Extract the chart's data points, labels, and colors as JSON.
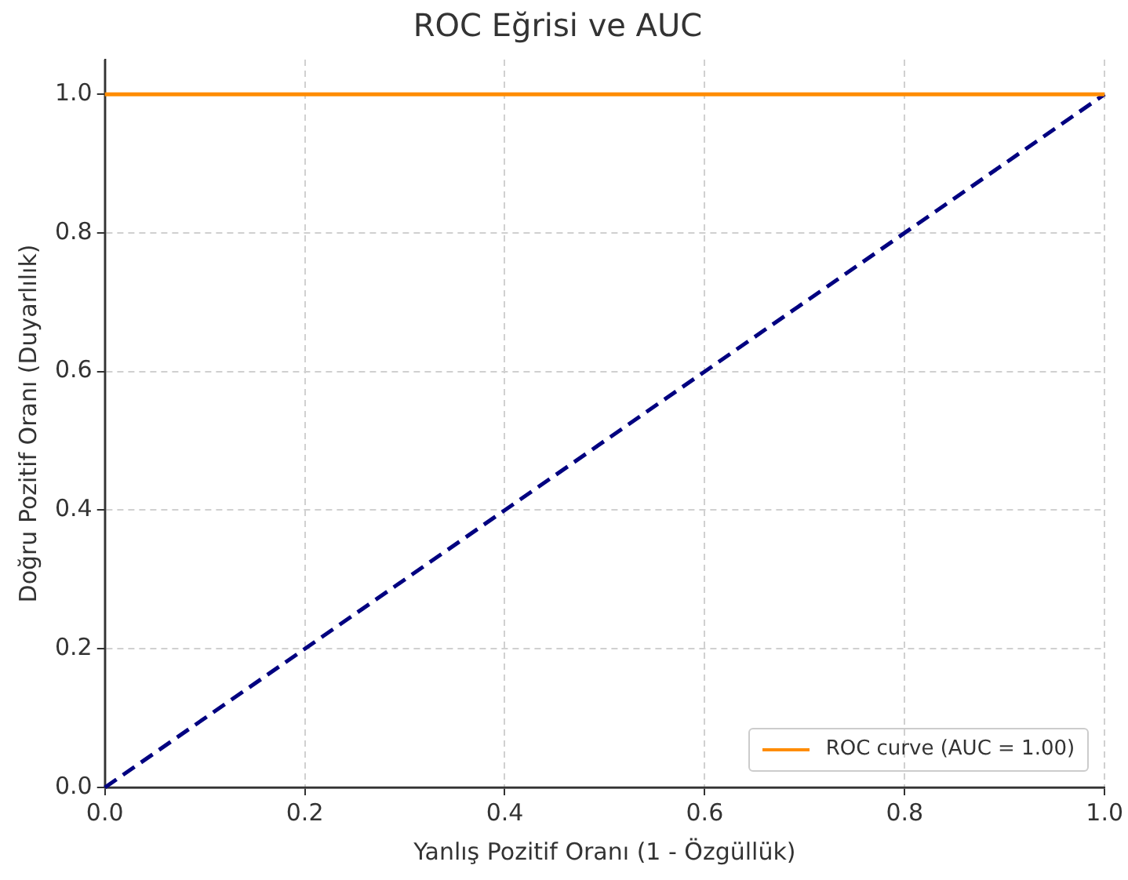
{
  "chart_data": {
    "type": "line",
    "title": "ROC Eğrisi ve AUC",
    "xlabel": "Yanlış Pozitif Oranı (1 - Özgüllük)",
    "ylabel": "Doğru Pozitif Oranı (Duyarlılık)",
    "x": [
      0,
      1
    ],
    "series": [
      {
        "name": "ROC curve (AUC = 1.00)",
        "color": "#ff8c00",
        "values": [
          1,
          1
        ],
        "line_style": "solid"
      },
      {
        "color": "#000080",
        "values": [
          0,
          1
        ],
        "line_style": "dashed"
      }
    ],
    "xlim": [
      0,
      1
    ],
    "ylim": [
      0,
      1.05
    ],
    "xticks": [
      {
        "value": 0,
        "label": "0.0"
      },
      0.2,
      0.4,
      0.6,
      0.8,
      {
        "value": 1,
        "label": "1.0"
      }
    ],
    "yticks": [
      {
        "value": 0,
        "label": "0.0"
      },
      0.2,
      0.4,
      0.6,
      0.8,
      {
        "value": 1,
        "label": "1.0"
      }
    ],
    "grid": true,
    "legend": "bottom right",
    "marker": "none"
  }
}
